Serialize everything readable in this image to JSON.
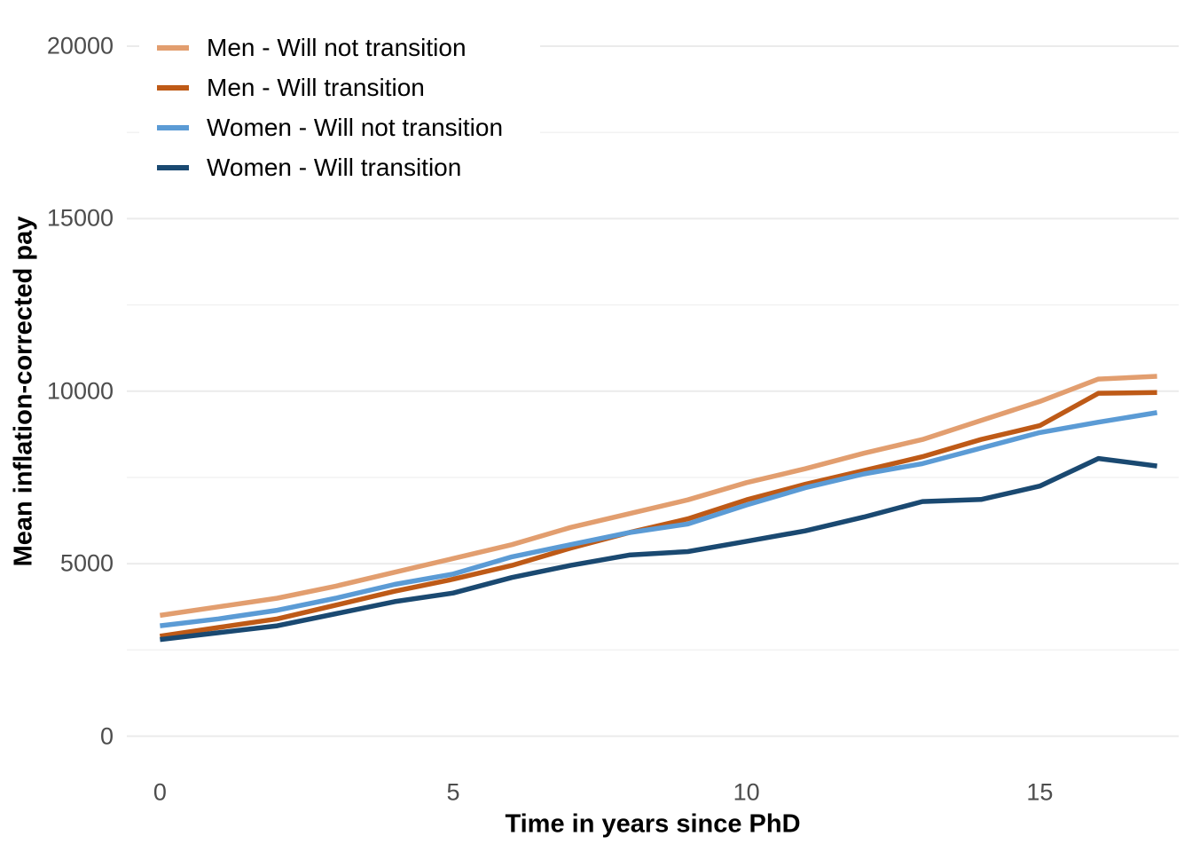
{
  "chart_data": {
    "type": "line",
    "title": "",
    "xlabel": "Time in years since PhD",
    "ylabel": "Mean inflation-corrected pay",
    "x": [
      0,
      1,
      2,
      3,
      4,
      5,
      6,
      7,
      8,
      9,
      10,
      11,
      12,
      13,
      14,
      15,
      16,
      17
    ],
    "series": [
      {
        "name": "Men - Will not transition",
        "color": "#E29E6F",
        "values": [
          3500,
          3750,
          4000,
          4350,
          4750,
          5150,
          5550,
          6050,
          6450,
          6850,
          7350,
          7750,
          8200,
          8600,
          9150,
          9700,
          10350,
          10430
        ]
      },
      {
        "name": "Men - Will transition",
        "color": "#BE5A17",
        "values": [
          2900,
          3150,
          3400,
          3800,
          4200,
          4550,
          4950,
          5450,
          5900,
          6300,
          6850,
          7300,
          7700,
          8100,
          8600,
          9000,
          9940,
          9960
        ]
      },
      {
        "name": "Women - Will not transition",
        "color": "#5B9BD5",
        "values": [
          3200,
          3400,
          3650,
          4000,
          4400,
          4700,
          5200,
          5550,
          5900,
          6150,
          6700,
          7200,
          7600,
          7900,
          8350,
          8800,
          9100,
          9380
        ]
      },
      {
        "name": "Women - Will transition",
        "color": "#1A4971",
        "values": [
          2800,
          3000,
          3200,
          3550,
          3900,
          4150,
          4600,
          4950,
          5250,
          5350,
          5650,
          5950,
          6350,
          6800,
          6860,
          7250,
          8050,
          7830
        ]
      }
    ],
    "x_ticks": [
      0,
      5,
      10,
      15
    ],
    "y_ticks": [
      0,
      5000,
      10000,
      15000,
      20000
    ],
    "y_minor_ticks": [
      2500,
      7500,
      12500,
      17500
    ],
    "xlim": [
      0,
      17
    ],
    "ylim": [
      0,
      20000
    ],
    "grid": "horizontal major+minor, no vertical",
    "legend_position": "inside top-left"
  },
  "colors": {
    "background": "#FFFFFF",
    "grid_major": "#EBEBEB",
    "grid_minor": "#F1F1F1",
    "tick_label": "#4D4D4D",
    "axis_title": "#000000"
  }
}
